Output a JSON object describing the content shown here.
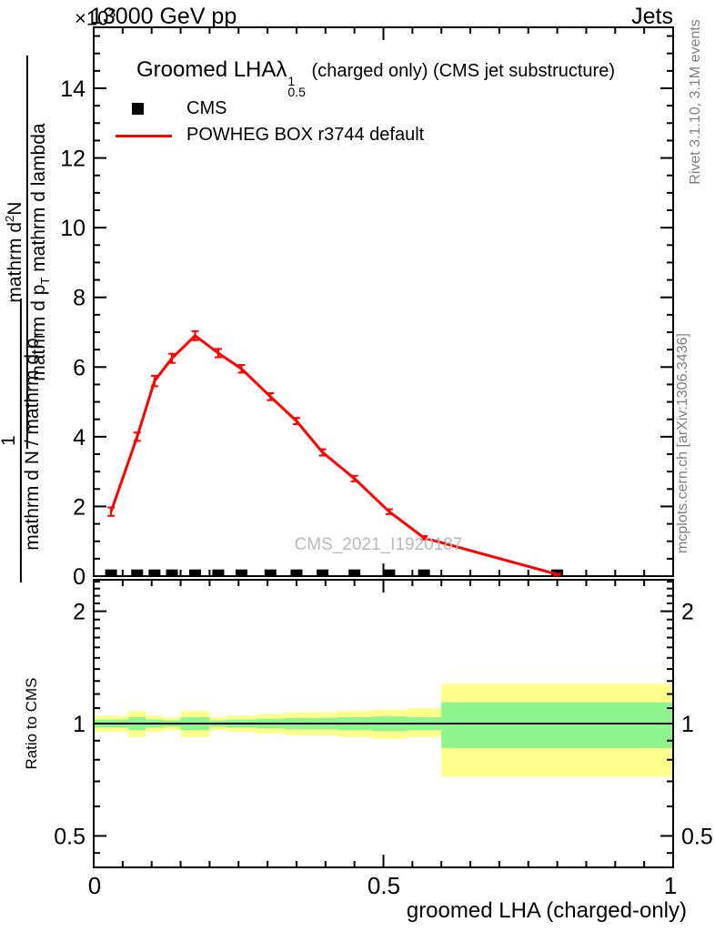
{
  "header": {
    "energy": "13000 GeV pp",
    "process": "Jets",
    "exponent_prefix": "×10",
    "exponent": "3"
  },
  "title": {
    "main": "Groomed LHA",
    "lambda": "λ",
    "lambda_sup": "1",
    "lambda_sub": "0.5",
    "suffix": "(charged only) (CMS jet substructure)"
  },
  "legend": {
    "items": [
      {
        "label": "CMS",
        "marker": "black-square"
      },
      {
        "label": "POWHEG BOX r3744 default",
        "marker": "red-line"
      }
    ]
  },
  "watermark": {
    "text": "CMS_2021_I1920187"
  },
  "side_notes": {
    "rivet": "Rivet 3.1.10,  3.1M events",
    "mcplots": "mcplots.cern.ch [arXiv:1306.3436]"
  },
  "y_axis": {
    "frac_upper": {
      "num_a": "mathrm d",
      "num_sup": "2",
      "num_b": "N",
      "den_a": "mathrm d p",
      "den_sub": "T",
      "den_b": " mathrm d lambda"
    },
    "frac_lower": {
      "num": "1",
      "den_a": "mathrm d N / mathrm d p",
      "den_sub": "T"
    },
    "tick_labels": [
      "0",
      "2",
      "4",
      "6",
      "8",
      "10",
      "12",
      "14"
    ],
    "tick_values": [
      0,
      2,
      4,
      6,
      8,
      10,
      12,
      14
    ]
  },
  "x_axis": {
    "title": "groomed LHA (charged-only)",
    "tick_labels": [
      "0",
      "0.5",
      "1"
    ],
    "tick_values": [
      0,
      0.5,
      1
    ]
  },
  "ratio_axis": {
    "label": "Ratio to CMS",
    "tick_labels": [
      "0.5",
      "1",
      "2"
    ],
    "tick_values": [
      0.5,
      1,
      2
    ]
  },
  "colors": {
    "mc_line": "#ff0000",
    "band_yellow": "#ffff8c",
    "band_green": "#8ef58e",
    "side_note_gray": "#808080",
    "watermark_gray": "#b9b9b9"
  },
  "chart_data": {
    "type": "line",
    "title": "Groomed LHA lambda^1_0.5 (charged only) (CMS jet substructure)",
    "x_label": "groomed LHA (charged-only)",
    "y_multiplier": "×10³",
    "ylim": [
      0,
      15.75
    ],
    "xlim": [
      0,
      1
    ],
    "y_ticks": [
      0,
      2,
      4,
      6,
      8,
      10,
      12,
      14
    ],
    "x_ticks": [
      0,
      0.5,
      1
    ],
    "bin_edges": [
      0,
      0.06,
      0.09,
      0.12,
      0.15,
      0.2,
      0.23,
      0.28,
      0.33,
      0.37,
      0.42,
      0.48,
      0.54,
      0.6,
      1.0
    ],
    "bin_centers": [
      0.03,
      0.075,
      0.105,
      0.135,
      0.175,
      0.215,
      0.255,
      0.305,
      0.35,
      0.395,
      0.45,
      0.51,
      0.57,
      0.8
    ],
    "series": [
      {
        "name": "CMS",
        "marker": "black-square",
        "values": [
          0.1,
          0.1,
          0.1,
          0.1,
          0.1,
          0.1,
          0.1,
          0.1,
          0.1,
          0.1,
          0.1,
          0.1,
          0.1,
          0.1
        ]
      },
      {
        "name": "POWHEG BOX r3744 default",
        "marker": "red-line",
        "values": [
          1.85,
          4.0,
          5.6,
          6.25,
          6.9,
          6.4,
          5.95,
          5.15,
          4.45,
          3.55,
          2.8,
          1.85,
          1.1,
          0.05
        ],
        "errors": [
          0.12,
          0.12,
          0.15,
          0.13,
          0.13,
          0.12,
          0.11,
          0.1,
          0.09,
          0.09,
          0.08,
          0.07,
          0.05,
          0.02
        ]
      }
    ],
    "ratio": {
      "label": "Ratio to CMS",
      "scale": "log",
      "ylim": [
        0.41,
        2.43
      ],
      "ticks": [
        0.5,
        1,
        2
      ],
      "reference": 1,
      "bands": [
        {
          "lo": 0.95,
          "hi": 1.05,
          "green_lo": 0.975,
          "green_hi": 1.025
        },
        {
          "lo": 0.92,
          "hi": 1.08,
          "green_lo": 0.96,
          "green_hi": 1.04
        },
        {
          "lo": 0.95,
          "hi": 1.05,
          "green_lo": 0.975,
          "green_hi": 1.025
        },
        {
          "lo": 0.96,
          "hi": 1.04,
          "green_lo": 0.98,
          "green_hi": 1.02
        },
        {
          "lo": 0.92,
          "hi": 1.08,
          "green_lo": 0.96,
          "green_hi": 1.04
        },
        {
          "lo": 0.96,
          "hi": 1.04,
          "green_lo": 0.98,
          "green_hi": 1.02
        },
        {
          "lo": 0.95,
          "hi": 1.05,
          "green_lo": 0.975,
          "green_hi": 1.025
        },
        {
          "lo": 0.94,
          "hi": 1.06,
          "green_lo": 0.97,
          "green_hi": 1.03
        },
        {
          "lo": 0.93,
          "hi": 1.07,
          "green_lo": 0.965,
          "green_hi": 1.035
        },
        {
          "lo": 0.93,
          "hi": 1.07,
          "green_lo": 0.965,
          "green_hi": 1.035
        },
        {
          "lo": 0.92,
          "hi": 1.08,
          "green_lo": 0.96,
          "green_hi": 1.04
        },
        {
          "lo": 0.91,
          "hi": 1.09,
          "green_lo": 0.955,
          "green_hi": 1.045
        },
        {
          "lo": 0.92,
          "hi": 1.1,
          "green_lo": 0.96,
          "green_hi": 1.04
        },
        {
          "lo": 0.72,
          "hi": 1.28,
          "green_lo": 0.86,
          "green_hi": 1.14
        }
      ]
    }
  }
}
